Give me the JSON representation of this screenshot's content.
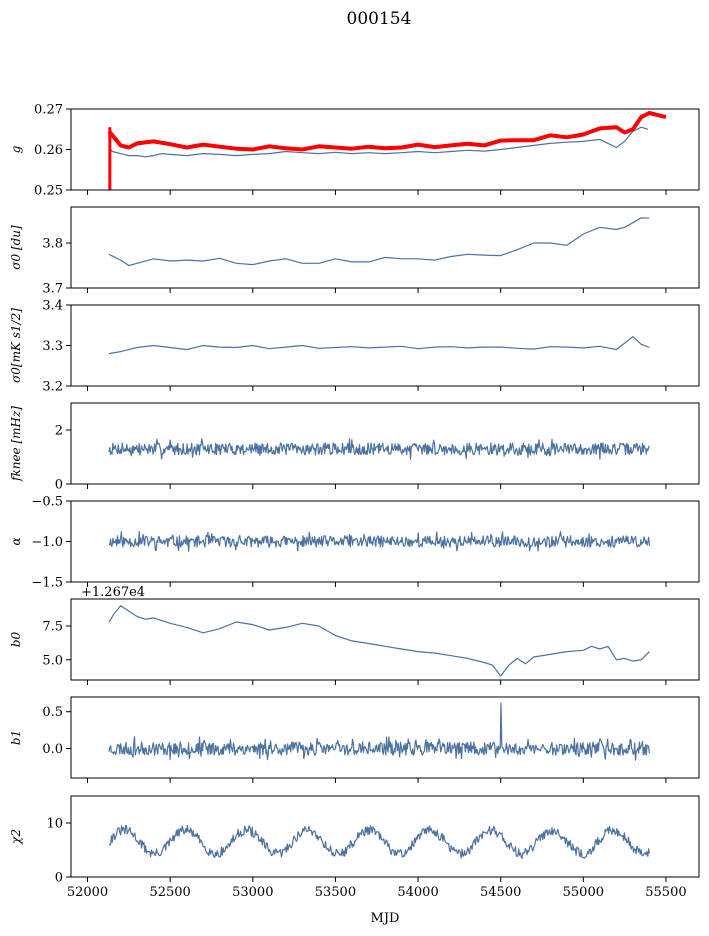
{
  "figure_title": "000154",
  "xlabel": "MJD",
  "colors": {
    "series": "#4c72a0",
    "highlight": "#ff0000",
    "axis": "#000000"
  },
  "chart_data": [
    {
      "type": "line",
      "ylabel": "g",
      "ylim": [
        0.25,
        0.27
      ],
      "yticks": [
        "0.25",
        "0.26",
        "0.27"
      ],
      "ytick_values": [
        0.25,
        0.26,
        0.27
      ],
      "xlim": [
        51900,
        55700
      ],
      "show_xtick_labels": false,
      "series": [
        {
          "color": "#4c72a0",
          "width": 1.2,
          "x": [
            52130,
            52150,
            52200,
            52250,
            52300,
            52350,
            52400,
            52450,
            52500,
            52600,
            52700,
            52800,
            52900,
            53000,
            53100,
            53200,
            53300,
            53400,
            53500,
            53600,
            53700,
            53800,
            53900,
            54000,
            54100,
            54200,
            54300,
            54400,
            54500,
            54600,
            54700,
            54800,
            54900,
            55000,
            55100,
            55150,
            55200,
            55250,
            55300,
            55350,
            55390
          ],
          "y": [
            0.2605,
            0.2595,
            0.259,
            0.2585,
            0.2585,
            0.2582,
            0.2585,
            0.259,
            0.2588,
            0.2585,
            0.259,
            0.2588,
            0.2585,
            0.2588,
            0.259,
            0.2595,
            0.2592,
            0.259,
            0.2593,
            0.259,
            0.2592,
            0.259,
            0.2592,
            0.2595,
            0.2592,
            0.2595,
            0.2598,
            0.2596,
            0.26,
            0.2605,
            0.261,
            0.2615,
            0.2618,
            0.262,
            0.2625,
            0.2615,
            0.2605,
            0.262,
            0.2645,
            0.2655,
            0.265
          ]
        },
        {
          "color": "#ff0000",
          "width": 4,
          "x": [
            52130,
            52160,
            52200,
            52250,
            52300,
            52400,
            52500,
            52600,
            52700,
            52800,
            52900,
            53000,
            53100,
            53200,
            53300,
            53400,
            53500,
            53600,
            53700,
            53800,
            53900,
            54000,
            54100,
            54200,
            54300,
            54400,
            54500,
            54600,
            54700,
            54800,
            54900,
            55000,
            55100,
            55200,
            55250,
            55300,
            55350,
            55400,
            55450,
            55500
          ],
          "y": [
            0.2645,
            0.263,
            0.261,
            0.2605,
            0.2615,
            0.262,
            0.2613,
            0.2605,
            0.2612,
            0.2607,
            0.2602,
            0.26,
            0.2608,
            0.2603,
            0.26,
            0.2608,
            0.2605,
            0.2602,
            0.2607,
            0.2603,
            0.2605,
            0.2612,
            0.2606,
            0.261,
            0.2614,
            0.261,
            0.2622,
            0.2623,
            0.2623,
            0.2635,
            0.263,
            0.2637,
            0.2652,
            0.2655,
            0.2642,
            0.265,
            0.268,
            0.269,
            0.2685,
            0.268
          ]
        }
      ]
    },
    {
      "type": "line",
      "ylabel": "σ0 [du]",
      "ylim": [
        3.7,
        3.88
      ],
      "yticks": [
        "3.7",
        "3.8"
      ],
      "ytick_values": [
        3.7,
        3.8
      ],
      "xlim": [
        51900,
        55700
      ],
      "show_xtick_labels": false,
      "series": [
        {
          "color": "#4c72a0",
          "width": 1.2,
          "x": [
            52130,
            52200,
            52250,
            52300,
            52400,
            52500,
            52600,
            52700,
            52800,
            52900,
            53000,
            53100,
            53200,
            53300,
            53400,
            53500,
            53600,
            53700,
            53800,
            53900,
            54000,
            54100,
            54200,
            54300,
            54400,
            54500,
            54600,
            54700,
            54800,
            54900,
            55000,
            55100,
            55200,
            55250,
            55300,
            55350,
            55400
          ],
          "y": [
            3.775,
            3.762,
            3.75,
            3.755,
            3.765,
            3.76,
            3.762,
            3.76,
            3.766,
            3.755,
            3.752,
            3.76,
            3.765,
            3.755,
            3.755,
            3.765,
            3.758,
            3.758,
            3.768,
            3.765,
            3.765,
            3.762,
            3.77,
            3.775,
            3.773,
            3.772,
            3.785,
            3.8,
            3.8,
            3.795,
            3.82,
            3.835,
            3.83,
            3.835,
            3.845,
            3.856,
            3.855
          ]
        }
      ]
    },
    {
      "type": "line",
      "ylabel": "σ0[mK s1/2]",
      "ylim": [
        3.2,
        3.4
      ],
      "yticks": [
        "3.2",
        "3.3",
        "3.4"
      ],
      "ytick_values": [
        3.2,
        3.3,
        3.4
      ],
      "xlim": [
        51900,
        55700
      ],
      "show_xtick_labels": false,
      "series": [
        {
          "color": "#4c72a0",
          "width": 1.2,
          "x": [
            52130,
            52200,
            52300,
            52400,
            52500,
            52600,
            52700,
            52800,
            52900,
            53000,
            53100,
            53200,
            53300,
            53400,
            53500,
            53600,
            53700,
            53800,
            53900,
            54000,
            54100,
            54200,
            54300,
            54400,
            54500,
            54600,
            54700,
            54800,
            54900,
            55000,
            55100,
            55200,
            55300,
            55350,
            55400
          ],
          "y": [
            3.28,
            3.285,
            3.295,
            3.3,
            3.295,
            3.29,
            3.3,
            3.296,
            3.295,
            3.3,
            3.292,
            3.296,
            3.3,
            3.293,
            3.295,
            3.297,
            3.294,
            3.296,
            3.298,
            3.292,
            3.296,
            3.297,
            3.294,
            3.296,
            3.296,
            3.293,
            3.291,
            3.297,
            3.296,
            3.294,
            3.298,
            3.29,
            3.322,
            3.303,
            3.295
          ]
        }
      ]
    },
    {
      "type": "line",
      "ylabel": "fknee [mHz]",
      "ylim": [
        0,
        3
      ],
      "yticks": [
        "0",
        "2"
      ],
      "ytick_values": [
        0,
        2
      ],
      "xlim": [
        51900,
        55700
      ],
      "show_xtick_labels": false,
      "series": [
        {
          "color": "#4c72a0",
          "width": 1.2,
          "noise": {
            "x0": 52130,
            "x1": 55400,
            "mean": 1.3,
            "amp": 0.22,
            "n": 700,
            "seed": 7
          }
        }
      ]
    },
    {
      "type": "line",
      "ylabel": "α",
      "ylim": [
        -1.5,
        -0.5
      ],
      "yticks": [
        "−1.5",
        "−1.0",
        "−0.5"
      ],
      "ytick_values": [
        -1.5,
        -1.0,
        -0.5
      ],
      "xlim": [
        51900,
        55700
      ],
      "show_xtick_labels": false,
      "series": [
        {
          "color": "#4c72a0",
          "width": 1.2,
          "noise": {
            "x0": 52130,
            "x1": 55400,
            "mean": -1.0,
            "amp": 0.07,
            "n": 700,
            "seed": 11
          }
        }
      ]
    },
    {
      "type": "line",
      "ylabel": "b0",
      "ylim": [
        3.5,
        9.5
      ],
      "offset_text": "+1.267e4",
      "yticks": [
        "5.0",
        "7.5"
      ],
      "ytick_values": [
        5.0,
        7.5
      ],
      "xlim": [
        51900,
        55700
      ],
      "show_xtick_labels": false,
      "series": [
        {
          "color": "#4c72a0",
          "width": 1.2,
          "x": [
            52130,
            52160,
            52200,
            52250,
            52300,
            52350,
            52400,
            52500,
            52600,
            52700,
            52800,
            52900,
            53000,
            53100,
            53200,
            53300,
            53400,
            53500,
            53600,
            53700,
            53800,
            53900,
            54000,
            54100,
            54200,
            54300,
            54400,
            54450,
            54500,
            54550,
            54600,
            54650,
            54700,
            54800,
            54900,
            55000,
            55050,
            55100,
            55150,
            55200,
            55250,
            55300,
            55350,
            55400
          ],
          "y": [
            7.8,
            8.4,
            9.0,
            8.6,
            8.2,
            8.0,
            8.1,
            7.7,
            7.4,
            7.0,
            7.3,
            7.8,
            7.6,
            7.2,
            7.4,
            7.7,
            7.5,
            6.8,
            6.4,
            6.2,
            6.0,
            5.8,
            5.6,
            5.5,
            5.3,
            5.1,
            4.8,
            4.6,
            3.8,
            4.6,
            5.1,
            4.7,
            5.2,
            5.4,
            5.6,
            5.7,
            6.0,
            5.8,
            6.0,
            5.0,
            5.1,
            4.9,
            5.0,
            5.6
          ]
        }
      ]
    },
    {
      "type": "line",
      "ylabel": "b1",
      "ylim": [
        -0.4,
        0.7
      ],
      "yticks": [
        "0.0",
        "0.5"
      ],
      "ytick_values": [
        0.0,
        0.5
      ],
      "xlim": [
        51900,
        55700
      ],
      "show_xtick_labels": false,
      "series": [
        {
          "color": "#4c72a0",
          "width": 1.2,
          "noise": {
            "x0": 52130,
            "x1": 55400,
            "mean": 0.0,
            "amp": 0.09,
            "n": 700,
            "seed": 23,
            "spike": {
              "x": 54500,
              "y": 0.62
            }
          }
        }
      ]
    },
    {
      "type": "line",
      "ylabel": "χ2",
      "ylim": [
        0,
        15
      ],
      "yticks": [
        "0",
        "10"
      ],
      "ytick_values": [
        0,
        10
      ],
      "xlim": [
        51900,
        55700
      ],
      "show_xtick_labels": true,
      "xticks": [
        "52000",
        "52500",
        "53000",
        "53500",
        "54000",
        "54500",
        "55000",
        "55500"
      ],
      "xtick_values": [
        52000,
        52500,
        53000,
        53500,
        54000,
        54500,
        55000,
        55500
      ],
      "series": [
        {
          "color": "#4c72a0",
          "width": 1.2,
          "wave": {
            "x0": 52130,
            "x1": 55400,
            "mean": 6.5,
            "amp": 2.2,
            "period": 370,
            "jitter": 0.9,
            "n": 650,
            "seed": 31
          }
        }
      ]
    }
  ]
}
